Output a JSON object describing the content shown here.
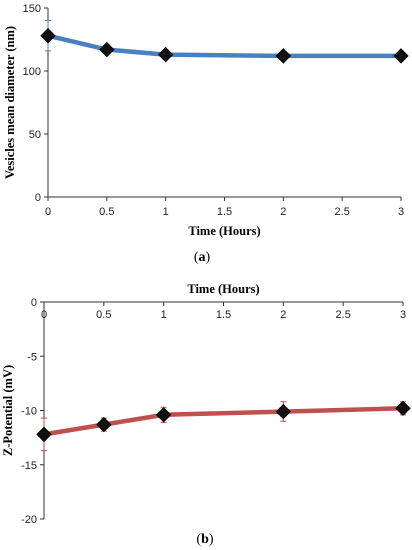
{
  "chart_data": [
    {
      "type": "line",
      "panel": "a",
      "panel_label": {
        "open": "(",
        "letter": "a",
        "close": ")"
      },
      "xlabel": "Time (Hours)",
      "ylabel": "Vesicles mean diameter (nm)",
      "xlim": [
        0,
        3
      ],
      "ylim": [
        0,
        150
      ],
      "xticks": [
        0,
        0.5,
        1,
        1.5,
        2,
        2.5,
        3
      ],
      "xtick_labels": [
        "0",
        "0.5",
        "1",
        "1.5",
        "2",
        "2.5",
        "3"
      ],
      "yticks": [
        0,
        50,
        100,
        150
      ],
      "ytick_labels": [
        "0",
        "50",
        "100",
        "150"
      ],
      "grid": false,
      "line_color": "#4a7fc1",
      "marker_color": "#111111",
      "error_color": "#4a7fc1",
      "series": [
        {
          "x": [
            0,
            0.5,
            1,
            2,
            3
          ],
          "y": [
            128,
            117,
            113,
            112,
            112
          ],
          "error": [
            12,
            3,
            3,
            2,
            3
          ]
        }
      ]
    },
    {
      "type": "line",
      "panel": "b",
      "panel_label": {
        "open": "(",
        "letter": "b",
        "close": ")"
      },
      "xlabel": "Time (Hours)",
      "ylabel": "Z-Potential (mV)",
      "xlim": [
        0,
        3
      ],
      "ylim": [
        -20,
        0
      ],
      "xticks": [
        0,
        0.5,
        1,
        1.5,
        2,
        2.5,
        3
      ],
      "xtick_labels": [
        "0",
        "0.5",
        "1",
        "1.5",
        "2",
        "2.5",
        "3"
      ],
      "yticks": [
        0,
        -5,
        -10,
        -15,
        -20
      ],
      "ytick_labels": [
        "0",
        "-5",
        "-10",
        "-15",
        "-20"
      ],
      "x_axis_position": "top",
      "grid": false,
      "line_color": "#c0504d",
      "marker_color": "#111111",
      "error_color": "#c0504d",
      "series": [
        {
          "x": [
            0,
            0.5,
            1,
            2,
            3
          ],
          "y": [
            -12.2,
            -11.3,
            -10.4,
            -10.1,
            -9.8
          ],
          "error": [
            1.5,
            0.6,
            0.7,
            0.9,
            0.6
          ]
        }
      ]
    }
  ]
}
